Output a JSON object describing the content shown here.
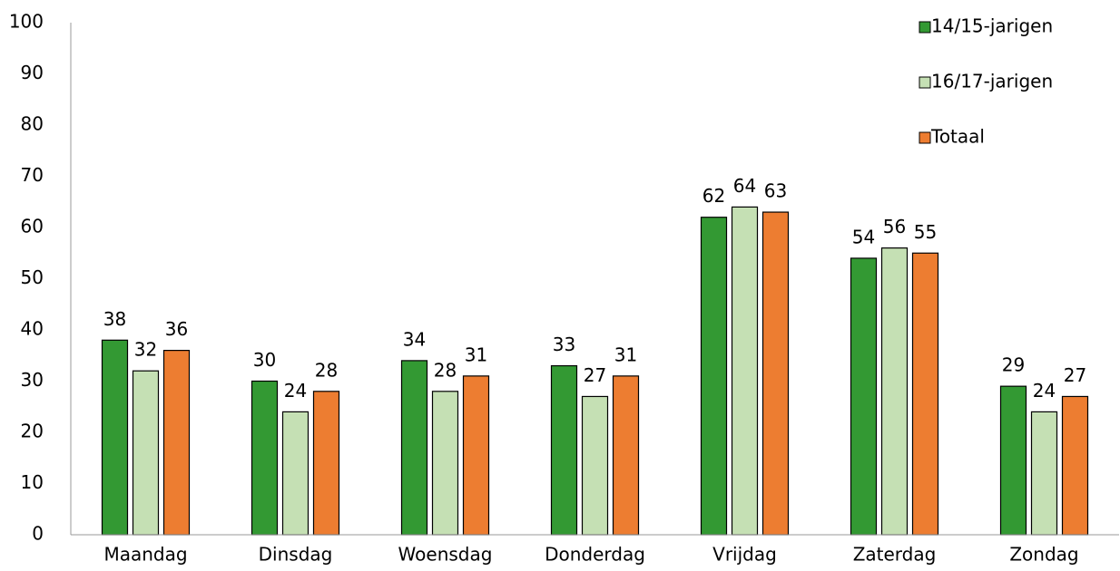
{
  "chart_data": {
    "type": "bar",
    "categories": [
      "Maandag",
      "Dinsdag",
      "Woensdag",
      "Donderdag",
      "Vrijdag",
      "Zaterdag",
      "Zondag"
    ],
    "series": [
      {
        "name": "14/15-jarigen",
        "color": "#339933",
        "values": [
          38,
          30,
          34,
          33,
          62,
          54,
          29
        ]
      },
      {
        "name": "16/17-jarigen",
        "color": "#c5e0b4",
        "values": [
          32,
          24,
          28,
          27,
          64,
          56,
          24
        ]
      },
      {
        "name": "Totaal",
        "color": "#ed7d31",
        "values": [
          36,
          28,
          31,
          31,
          63,
          55,
          27
        ]
      }
    ],
    "ylim": [
      0,
      100
    ],
    "yticks": [
      0,
      10,
      20,
      30,
      40,
      50,
      60,
      70,
      80,
      90,
      100
    ],
    "grid": false,
    "legend": "top-right"
  }
}
